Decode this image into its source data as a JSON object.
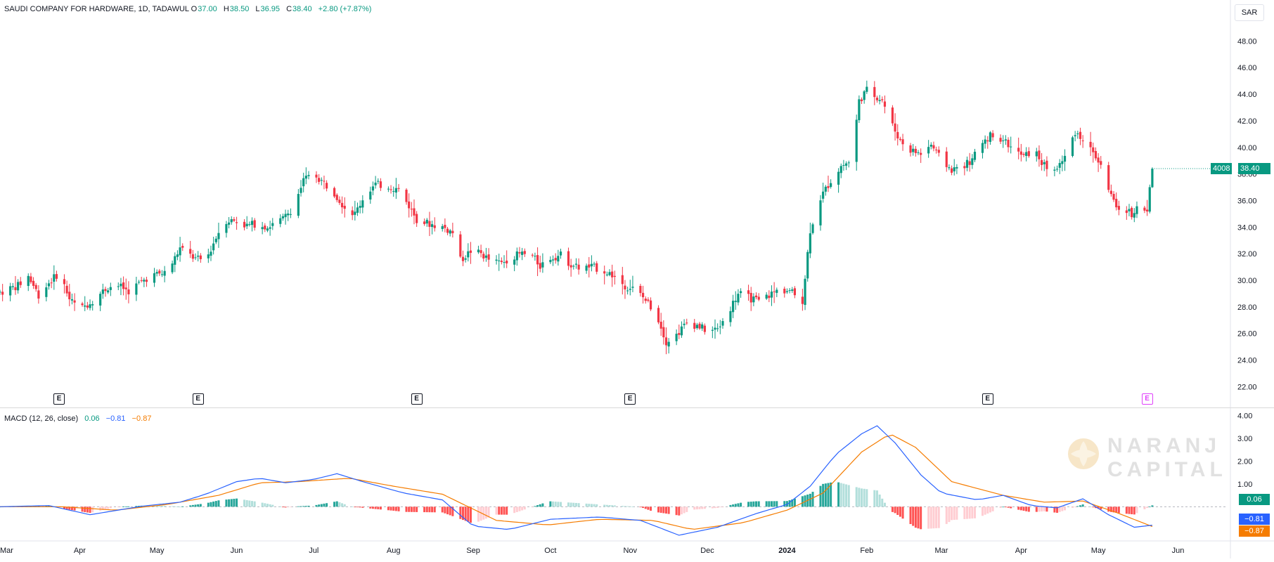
{
  "header": {
    "symbol": "SAUDI COMPANY FOR HARDWARE, 1D, TADAWUL",
    "o_label": "O",
    "o_value": "37.00",
    "h_label": "H",
    "h_value": "38.50",
    "l_label": "L",
    "l_value": "36.95",
    "c_label": "C",
    "c_value": "38.40",
    "change": "+2.80 (+7.87%)",
    "currency": "SAR"
  },
  "price_tags": {
    "code": "4008",
    "last": "38.40"
  },
  "macd": {
    "label": "MACD (12, 26, close)",
    "hist_value": "0.06",
    "macd_value": "−0.81",
    "signal_value": "−0.87",
    "colors": {
      "macd": "#2962ff",
      "signal": "#f57c00",
      "hist_up_strong": "#26a69a",
      "hist_up_weak": "#b2dfdb",
      "hist_down_strong": "#ff5252",
      "hist_down_weak": "#ffcdd2"
    }
  },
  "colors": {
    "up": "#089981",
    "down": "#f23645",
    "grid": "#f0f3fa",
    "axis_text": "#131722"
  },
  "watermark": {
    "line1": "NARANJ",
    "line2": "CAPITAL"
  },
  "chart_data": {
    "type": "candlestick",
    "price_axis": {
      "ticks": [
        "22.00",
        "24.00",
        "26.00",
        "28.00",
        "30.00",
        "32.00",
        "34.00",
        "36.00",
        "38.00",
        "40.00",
        "42.00",
        "44.00",
        "46.00",
        "48.00"
      ],
      "ylim": [
        20.7,
        49.5
      ]
    },
    "macd_axis": {
      "ticks": [
        "1.00",
        "2.00",
        "3.00",
        "4.00"
      ],
      "ylim": [
        -1.5,
        4.2
      ]
    },
    "x_axis": {
      "labels": [
        "Mar",
        "Apr",
        "May",
        "Jun",
        "Jul",
        "Aug",
        "Sep",
        "Oct",
        "Nov",
        "Dec",
        "2024",
        "Feb",
        "Mar",
        "Apr",
        "May",
        "Jun"
      ],
      "label_bold": [
        false,
        false,
        false,
        false,
        false,
        false,
        false,
        false,
        false,
        false,
        true,
        false,
        false,
        false,
        false,
        false
      ],
      "label_positions": [
        "2023-03-01",
        "2023-04-01",
        "2023-05-01",
        "2023-06-01",
        "2023-07-01",
        "2023-08-01",
        "2023-09-01",
        "2023-10-01",
        "2023-11-01",
        "2023-12-01",
        "2024-01-01",
        "2024-02-01",
        "2024-03-01",
        "2024-04-01",
        "2024-05-01",
        "2024-06-01"
      ],
      "start": "2023-03-01",
      "end": "2024-06-20"
    },
    "earnings": [
      "2023-03-24",
      "2023-05-17",
      "2023-08-10",
      "2023-11-01",
      "2024-03-19",
      "2024-05-20"
    ],
    "price_anchors": [
      [
        "2023-03-01",
        29.1
      ],
      [
        "2023-03-08",
        29.6
      ],
      [
        "2023-03-12",
        30.3
      ],
      [
        "2023-03-16",
        28.9
      ],
      [
        "2023-03-20",
        29.8
      ],
      [
        "2023-03-24",
        30.6
      ],
      [
        "2023-03-28",
        28.6
      ],
      [
        "2023-04-01",
        27.8
      ],
      [
        "2023-04-06",
        28.5
      ],
      [
        "2023-04-12",
        29.5
      ],
      [
        "2023-04-16",
        29.6
      ],
      [
        "2023-04-20",
        29.2
      ],
      [
        "2023-04-28",
        30.3
      ],
      [
        "2023-05-05",
        30.6
      ],
      [
        "2023-05-10",
        32.4
      ],
      [
        "2023-05-16",
        31.6
      ],
      [
        "2023-05-20",
        31.5
      ],
      [
        "2023-05-23",
        32.8
      ],
      [
        "2023-05-27",
        34.5
      ],
      [
        "2023-05-31",
        34.5
      ],
      [
        "2023-06-05",
        34.1
      ],
      [
        "2023-06-09",
        34.3
      ],
      [
        "2023-06-13",
        34.0
      ],
      [
        "2023-06-19",
        34.6
      ],
      [
        "2023-06-23",
        35.5
      ],
      [
        "2023-06-27",
        37.5
      ],
      [
        "2023-07-01",
        38.0
      ],
      [
        "2023-07-05",
        37.3
      ],
      [
        "2023-07-09",
        36.6
      ],
      [
        "2023-07-13",
        35.5
      ],
      [
        "2023-07-17",
        35.0
      ],
      [
        "2023-07-21",
        36.5
      ],
      [
        "2023-07-25",
        37.2
      ],
      [
        "2023-07-30",
        37.1
      ],
      [
        "2023-08-03",
        36.8
      ],
      [
        "2023-08-07",
        35.6
      ],
      [
        "2023-08-10",
        34.6
      ],
      [
        "2023-08-14",
        34.3
      ],
      [
        "2023-08-20",
        34.0
      ],
      [
        "2023-08-24",
        33.6
      ],
      [
        "2023-08-27",
        31.5
      ],
      [
        "2023-08-31",
        32.2
      ],
      [
        "2023-09-04",
        32.0
      ],
      [
        "2023-09-08",
        31.4
      ],
      [
        "2023-09-12",
        31.3
      ],
      [
        "2023-09-16",
        31.8
      ],
      [
        "2023-09-20",
        32.0
      ],
      [
        "2023-09-24",
        31.8
      ],
      [
        "2023-09-27",
        31.1
      ],
      [
        "2023-10-01",
        31.7
      ],
      [
        "2023-10-05",
        31.9
      ],
      [
        "2023-10-09",
        31.2
      ],
      [
        "2023-10-13",
        30.9
      ],
      [
        "2023-10-17",
        31.0
      ],
      [
        "2023-10-21",
        30.8
      ],
      [
        "2023-10-25",
        30.4
      ],
      [
        "2023-10-30",
        29.6
      ],
      [
        "2023-11-03",
        29.3
      ],
      [
        "2023-11-07",
        28.5
      ],
      [
        "2023-11-11",
        27.6
      ],
      [
        "2023-11-15",
        25.4
      ],
      [
        "2023-11-19",
        25.9
      ],
      [
        "2023-11-23",
        26.8
      ],
      [
        "2023-11-27",
        26.6
      ],
      [
        "2023-12-01",
        26.2
      ],
      [
        "2023-12-05",
        26.3
      ],
      [
        "2023-12-09",
        27.6
      ],
      [
        "2023-12-13",
        29.0
      ],
      [
        "2023-12-17",
        28.7
      ],
      [
        "2023-12-21",
        28.4
      ],
      [
        "2023-12-25",
        28.9
      ],
      [
        "2023-12-29",
        29.3
      ],
      [
        "2024-01-02",
        29.2
      ],
      [
        "2024-01-07",
        28.5
      ],
      [
        "2024-01-10",
        33.8
      ],
      [
        "2024-01-14",
        36.2
      ],
      [
        "2024-01-18",
        37.5
      ],
      [
        "2024-01-22",
        38.6
      ],
      [
        "2024-01-26",
        39.0
      ],
      [
        "2024-01-29",
        43.5
      ],
      [
        "2024-02-01",
        44.3
      ],
      [
        "2024-02-04",
        43.9
      ],
      [
        "2024-02-07",
        43.6
      ],
      [
        "2024-02-10",
        42.0
      ],
      [
        "2024-02-14",
        40.5
      ],
      [
        "2024-02-18",
        39.8
      ],
      [
        "2024-02-22",
        39.5
      ],
      [
        "2024-02-26",
        40.2
      ],
      [
        "2024-03-01",
        39.0
      ],
      [
        "2024-03-05",
        38.3
      ],
      [
        "2024-03-09",
        38.6
      ],
      [
        "2024-03-13",
        39.0
      ],
      [
        "2024-03-17",
        40.5
      ],
      [
        "2024-03-21",
        41.0
      ],
      [
        "2024-03-25",
        40.6
      ],
      [
        "2024-03-29",
        39.8
      ],
      [
        "2024-04-02",
        39.3
      ],
      [
        "2024-04-06",
        39.8
      ],
      [
        "2024-04-10",
        38.6
      ],
      [
        "2024-04-14",
        38.3
      ],
      [
        "2024-04-18",
        39.2
      ],
      [
        "2024-04-22",
        41.2
      ],
      [
        "2024-04-26",
        40.4
      ],
      [
        "2024-04-30",
        39.3
      ],
      [
        "2024-05-02",
        38.5
      ],
      [
        "2024-05-05",
        37.0
      ],
      [
        "2024-05-08",
        35.2
      ],
      [
        "2024-05-11",
        35.5
      ],
      [
        "2024-05-14",
        35.0
      ],
      [
        "2024-05-17",
        35.6
      ],
      [
        "2024-05-20",
        35.1
      ],
      [
        "2024-05-22",
        38.4
      ]
    ],
    "last_candle": {
      "date": "2024-05-22",
      "open": 37.0,
      "high": 38.5,
      "low": 36.95,
      "close": 38.4
    },
    "macd_anchors": [
      [
        "2023-03-01",
        0.0
      ],
      [
        "2023-03-20",
        0.05
      ],
      [
        "2023-04-05",
        -0.35
      ],
      [
        "2023-04-25",
        0.02
      ],
      [
        "2023-05-10",
        0.2
      ],
      [
        "2023-05-20",
        0.55
      ],
      [
        "2023-06-01",
        1.1
      ],
      [
        "2023-06-10",
        1.25
      ],
      [
        "2023-06-20",
        1.05
      ],
      [
        "2023-07-01",
        1.2
      ],
      [
        "2023-07-10",
        1.45
      ],
      [
        "2023-07-20",
        1.1
      ],
      [
        "2023-08-05",
        0.6
      ],
      [
        "2023-08-20",
        0.3
      ],
      [
        "2023-09-01",
        -0.85
      ],
      [
        "2023-09-15",
        -1.0
      ],
      [
        "2023-10-01",
        -0.55
      ],
      [
        "2023-10-20",
        -0.45
      ],
      [
        "2023-11-05",
        -0.6
      ],
      [
        "2023-11-20",
        -1.25
      ],
      [
        "2023-12-05",
        -0.9
      ],
      [
        "2023-12-20",
        -0.3
      ],
      [
        "2024-01-01",
        0.1
      ],
      [
        "2024-01-10",
        0.9
      ],
      [
        "2024-01-20",
        2.3
      ],
      [
        "2024-01-30",
        3.2
      ],
      [
        "2024-02-05",
        3.55
      ],
      [
        "2024-02-12",
        2.8
      ],
      [
        "2024-02-22",
        1.4
      ],
      [
        "2024-03-01",
        0.6
      ],
      [
        "2024-03-15",
        0.3
      ],
      [
        "2024-03-25",
        0.5
      ],
      [
        "2024-04-05",
        0.05
      ],
      [
        "2024-04-15",
        -0.05
      ],
      [
        "2024-04-25",
        0.35
      ],
      [
        "2024-05-05",
        -0.35
      ],
      [
        "2024-05-15",
        -0.9
      ],
      [
        "2024-05-22",
        -0.81
      ]
    ],
    "signal_anchors": [
      [
        "2023-03-01",
        0.0
      ],
      [
        "2023-03-25",
        0.0
      ],
      [
        "2023-04-15",
        -0.15
      ],
      [
        "2023-05-05",
        0.1
      ],
      [
        "2023-05-25",
        0.5
      ],
      [
        "2023-06-10",
        1.05
      ],
      [
        "2023-06-25",
        1.1
      ],
      [
        "2023-07-15",
        1.25
      ],
      [
        "2023-08-01",
        0.9
      ],
      [
        "2023-08-20",
        0.55
      ],
      [
        "2023-09-10",
        -0.6
      ],
      [
        "2023-09-30",
        -0.8
      ],
      [
        "2023-10-20",
        -0.55
      ],
      [
        "2023-11-10",
        -0.6
      ],
      [
        "2023-11-25",
        -1.0
      ],
      [
        "2023-12-15",
        -0.7
      ],
      [
        "2024-01-01",
        -0.15
      ],
      [
        "2024-01-15",
        0.6
      ],
      [
        "2024-01-30",
        2.4
      ],
      [
        "2024-02-10",
        3.2
      ],
      [
        "2024-02-20",
        2.6
      ],
      [
        "2024-03-05",
        1.1
      ],
      [
        "2024-03-25",
        0.5
      ],
      [
        "2024-04-10",
        0.2
      ],
      [
        "2024-04-25",
        0.25
      ],
      [
        "2024-05-08",
        -0.25
      ],
      [
        "2024-05-22",
        -0.87
      ]
    ]
  }
}
